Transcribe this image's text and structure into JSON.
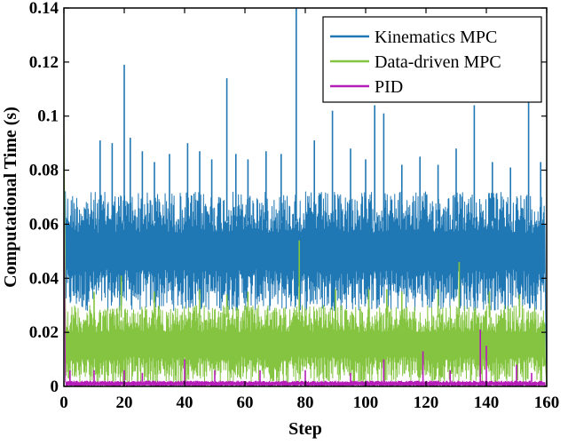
{
  "colors": {
    "kinematics": "#1f77b4",
    "data_driven": "#84c440",
    "pid": "#b51cb8",
    "axis": "#000000",
    "background": "#ffffff"
  },
  "chart_data": {
    "type": "line",
    "title": "",
    "xlabel": "Step",
    "ylabel": "Computational Time (s)",
    "xlim": [
      0,
      160
    ],
    "ylim": [
      0,
      0.14
    ],
    "xticks": [
      0,
      20,
      40,
      60,
      80,
      100,
      120,
      140,
      160
    ],
    "yticks": [
      0,
      0.02,
      0.04,
      0.06,
      0.08,
      0.1,
      0.12,
      0.14
    ],
    "xtick_labels": [
      "0",
      "20",
      "40",
      "60",
      "80",
      "100",
      "120",
      "140",
      "160"
    ],
    "ytick_labels": [
      "0",
      "0.02",
      "0.04",
      "0.06",
      "0.08",
      "0.1",
      "0.12",
      "0.14"
    ],
    "grid": false,
    "legend_position": "top-right",
    "series": [
      {
        "name": "Kinematics MPC",
        "color": "#1f77b4",
        "band_low": 0.028,
        "band_high": 0.072,
        "start_value": 0.072,
        "end_value": 0.0,
        "spikes": [
          {
            "x": 12,
            "y": 0.091
          },
          {
            "x": 16,
            "y": 0.09
          },
          {
            "x": 20,
            "y": 0.119
          },
          {
            "x": 22,
            "y": 0.092
          },
          {
            "x": 26,
            "y": 0.087
          },
          {
            "x": 30,
            "y": 0.083
          },
          {
            "x": 35,
            "y": 0.086
          },
          {
            "x": 41,
            "y": 0.09
          },
          {
            "x": 45,
            "y": 0.087
          },
          {
            "x": 49,
            "y": 0.084
          },
          {
            "x": 54,
            "y": 0.114
          },
          {
            "x": 57,
            "y": 0.086
          },
          {
            "x": 61,
            "y": 0.084
          },
          {
            "x": 67,
            "y": 0.087
          },
          {
            "x": 72,
            "y": 0.086
          },
          {
            "x": 77,
            "y": 0.14
          },
          {
            "x": 83,
            "y": 0.091
          },
          {
            "x": 89,
            "y": 0.102
          },
          {
            "x": 95,
            "y": 0.088
          },
          {
            "x": 100,
            "y": 0.084
          },
          {
            "x": 103,
            "y": 0.104
          },
          {
            "x": 106,
            "y": 0.101
          },
          {
            "x": 112,
            "y": 0.082
          },
          {
            "x": 118,
            "y": 0.085
          },
          {
            "x": 124,
            "y": 0.082
          },
          {
            "x": 130,
            "y": 0.088
          },
          {
            "x": 136,
            "y": 0.104
          },
          {
            "x": 142,
            "y": 0.083
          },
          {
            "x": 148,
            "y": 0.081
          },
          {
            "x": 154,
            "y": 0.106
          },
          {
            "x": 158,
            "y": 0.083
          }
        ]
      },
      {
        "name": "Data-driven MPC",
        "color": "#84c440",
        "band_low": 0.001,
        "band_high": 0.03,
        "start_value": 0.102,
        "end_value": 0.0,
        "spikes": [
          {
            "x": 10,
            "y": 0.035
          },
          {
            "x": 19,
            "y": 0.041
          },
          {
            "x": 30,
            "y": 0.035
          },
          {
            "x": 45,
            "y": 0.036
          },
          {
            "x": 54,
            "y": 0.034
          },
          {
            "x": 61,
            "y": 0.035
          },
          {
            "x": 78,
            "y": 0.054
          },
          {
            "x": 90,
            "y": 0.036
          },
          {
            "x": 101,
            "y": 0.036
          },
          {
            "x": 107,
            "y": 0.036
          },
          {
            "x": 112,
            "y": 0.035
          },
          {
            "x": 124,
            "y": 0.036
          },
          {
            "x": 131,
            "y": 0.046
          },
          {
            "x": 141,
            "y": 0.035
          },
          {
            "x": 151,
            "y": 0.034
          }
        ]
      },
      {
        "name": "PID",
        "color": "#b51cb8",
        "band_low": 0.0,
        "band_high": 0.002,
        "start_value": 0.069,
        "end_value": 0.0,
        "spikes": [
          {
            "x": 2,
            "y": 0.006
          },
          {
            "x": 10,
            "y": 0.006
          },
          {
            "x": 20,
            "y": 0.006
          },
          {
            "x": 26,
            "y": 0.005
          },
          {
            "x": 40,
            "y": 0.01
          },
          {
            "x": 50,
            "y": 0.006
          },
          {
            "x": 65,
            "y": 0.006
          },
          {
            "x": 80,
            "y": 0.006
          },
          {
            "x": 95,
            "y": 0.005
          },
          {
            "x": 106,
            "y": 0.01
          },
          {
            "x": 119,
            "y": 0.013
          },
          {
            "x": 128,
            "y": 0.006
          },
          {
            "x": 138,
            "y": 0.021
          },
          {
            "x": 140,
            "y": 0.015
          },
          {
            "x": 150,
            "y": 0.008
          },
          {
            "x": 155,
            "y": 0.005
          }
        ]
      }
    ]
  }
}
